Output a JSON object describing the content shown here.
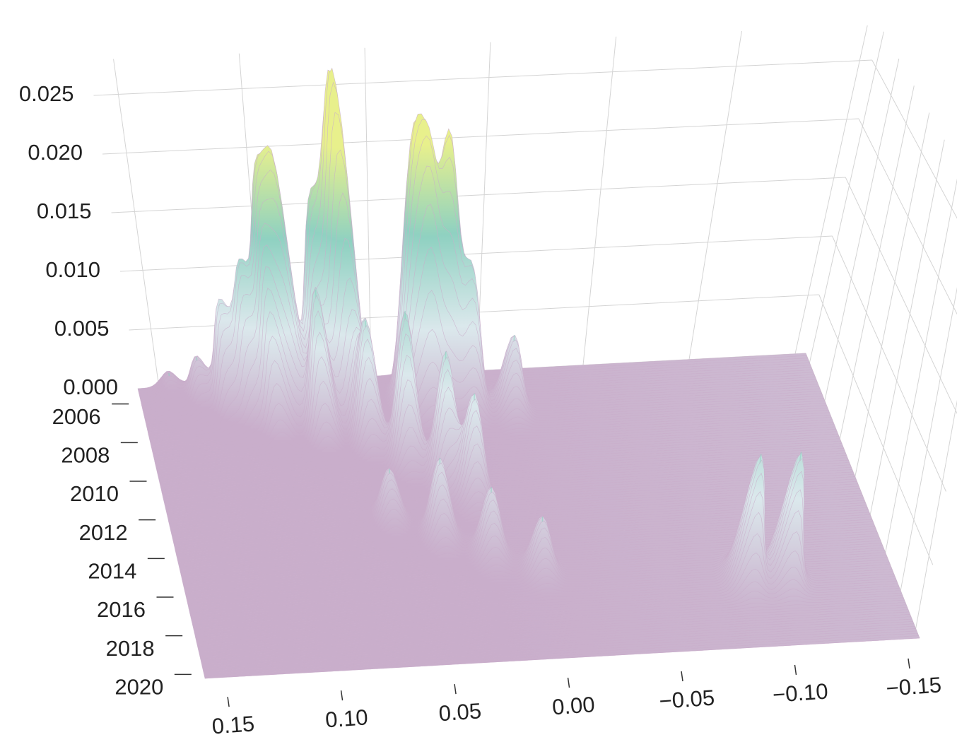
{
  "chart_data": {
    "type": "surface",
    "xlim": [
      0.16,
      -0.155
    ],
    "xticks": [
      0.15,
      {
        "value": 0.1,
        "label": "0.10"
      },
      0.05,
      {
        "value": 0,
        "label": "0.00"
      },
      {
        "value": -0.05,
        "label": "−0.05"
      },
      {
        "value": -0.1,
        "label": "−0.10"
      },
      {
        "value": -0.15,
        "label": "−0.15"
      }
    ],
    "ylim": [
      2005.5,
      2020.5
    ],
    "yticks": [
      2006,
      2008,
      2010,
      2012,
      2014,
      2016,
      2018,
      2020
    ],
    "zlim": [
      0,
      0.028
    ],
    "zticks": [
      {
        "value": 0,
        "label": "0.000"
      },
      0.005,
      {
        "value": 0.01,
        "label": "0.010"
      },
      0.015,
      {
        "value": 0.02,
        "label": "0.020"
      },
      0.025
    ],
    "grid": true,
    "colormap": [
      "#c9aecb",
      "#dbe8ec",
      "#8fd1c1",
      "#e8f08c"
    ],
    "peaks": [
      {
        "x": 0.145,
        "y": 2006,
        "z": 0.002
      },
      {
        "x": 0.132,
        "y": 2006.5,
        "z": 0.004
      },
      {
        "x": 0.12,
        "y": 2007,
        "z": 0.009
      },
      {
        "x": 0.11,
        "y": 2007.3,
        "z": 0.012
      },
      {
        "x": 0.1,
        "y": 2007,
        "z": 0.016
      },
      {
        "x": 0.092,
        "y": 2007.3,
        "z": 0.019
      },
      {
        "x": 0.078,
        "y": 2007,
        "z": 0.016
      },
      {
        "x": 0.069,
        "y": 2007.2,
        "z": 0.021
      },
      {
        "x": 0.064,
        "y": 2007.6,
        "z": 0.016
      },
      {
        "x": 0.035,
        "y": 2007,
        "z": 0.019
      },
      {
        "x": 0.028,
        "y": 2007.3,
        "z": 0.018
      },
      {
        "x": 0.019,
        "y": 2007,
        "z": 0.021
      },
      {
        "x": 0.009,
        "y": 2007.3,
        "z": 0.011
      },
      {
        "x": -0.01,
        "y": 2007.5,
        "z": 0.006
      },
      {
        "x": 0.1,
        "y": 2008,
        "z": 0.01
      },
      {
        "x": 0.08,
        "y": 2008.5,
        "z": 0.012
      },
      {
        "x": 0.06,
        "y": 2009,
        "z": 0.01
      },
      {
        "x": 0.045,
        "y": 2010,
        "z": 0.012
      },
      {
        "x": 0.03,
        "y": 2011,
        "z": 0.01
      },
      {
        "x": 0.02,
        "y": 2012,
        "z": 0.008
      },
      {
        "x": 0.06,
        "y": 2013,
        "z": 0.004
      },
      {
        "x": 0.04,
        "y": 2014,
        "z": 0.006
      },
      {
        "x": 0.02,
        "y": 2015,
        "z": 0.005
      },
      {
        "x": 0.0,
        "y": 2016,
        "z": 0.004
      },
      {
        "x": -0.089,
        "y": 2017,
        "z": 0.009
      },
      {
        "x": -0.106,
        "y": 2017,
        "z": 0.009
      }
    ]
  }
}
